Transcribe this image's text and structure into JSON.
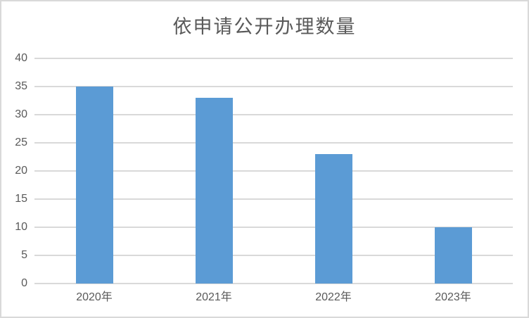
{
  "window": {
    "background": "#ffffff",
    "border_color": "#d9d9d9"
  },
  "chart_data": {
    "type": "bar",
    "title": "依申请公开办理数量",
    "categories": [
      "2020年",
      "2021年",
      "2022年",
      "2023年"
    ],
    "values": [
      35,
      33,
      23,
      10
    ],
    "xlabel": "",
    "ylabel": "",
    "ylim": [
      0,
      40
    ],
    "ytick_step": 5,
    "yticks": [
      40,
      35,
      30,
      25,
      20,
      15,
      10,
      5,
      0
    ],
    "grid": "horizontal",
    "legend": "none",
    "bar_color": "#5b9bd5",
    "gridline_color": "#d9d9d9",
    "axis_label_color": "#595959",
    "title_color": "#595959"
  }
}
